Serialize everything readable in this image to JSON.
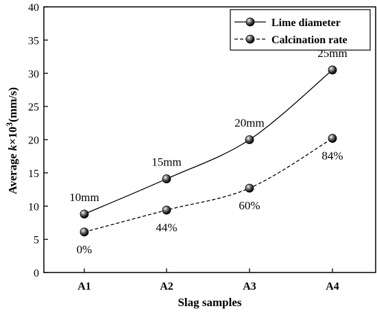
{
  "chart_data": {
    "type": "line",
    "title": "",
    "xlabel": "Slag samples",
    "ylabel": {
      "prefix": "Average ",
      "var": "k",
      "times": "×10",
      "sup": "3",
      "unit": "(mm/s)"
    },
    "categories": [
      "A1",
      "A2",
      "A3",
      "A4"
    ],
    "ylim": [
      0,
      40
    ],
    "yticks": [
      0,
      5,
      10,
      15,
      20,
      25,
      30,
      35,
      40
    ],
    "ytick_labels": [
      "0",
      "5",
      "10",
      "15",
      "20",
      "25",
      "30",
      "35",
      "40"
    ],
    "grid": false,
    "legend": {
      "position": "top-right"
    },
    "series": [
      {
        "name": "Lime diameter",
        "style": "solid",
        "values": [
          8.8,
          14.1,
          20.0,
          30.5
        ],
        "labels": [
          "10mm",
          "15mm",
          "20mm",
          "25mm"
        ],
        "label_position": "above"
      },
      {
        "name": "Calcination rate",
        "style": "dashed",
        "values": [
          6.1,
          9.4,
          12.7,
          20.2
        ],
        "labels": [
          "0%",
          "44%",
          "60%",
          "84%"
        ],
        "label_position": "below"
      }
    ],
    "colors": {
      "line": "#000000",
      "marker": "#1a1a1a",
      "highlight": "#ffffff"
    }
  }
}
